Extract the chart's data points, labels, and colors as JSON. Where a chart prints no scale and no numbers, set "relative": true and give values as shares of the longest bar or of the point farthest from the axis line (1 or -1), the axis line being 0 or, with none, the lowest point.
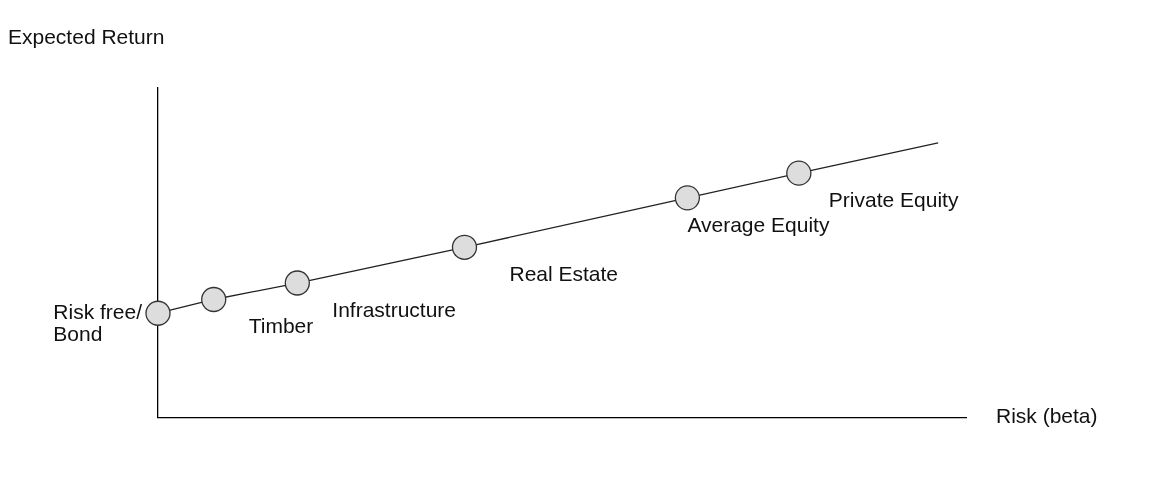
{
  "chart_data": {
    "type": "line",
    "xlabel": "Risk (beta)",
    "ylabel": "Expected Return",
    "relative": true,
    "legend": false,
    "grid": false,
    "marker": "circle",
    "categories": [
      null,
      null,
      null,
      null,
      null,
      null,
      null,
      null,
      null,
      null,
      null,
      null,
      null,
      null,
      null,
      null,
      null,
      null,
      null,
      null,
      null,
      null,
      null,
      null,
      null,
      null,
      null,
      null,
      null,
      null
    ],
    "series": [
      {
        "color": "#222222",
        "values": [
          0.38,
          null,
          0.43,
          null,
          null,
          0.49,
          null,
          null,
          null,
          null,
          null,
          0.62,
          null,
          null,
          null,
          null,
          null,
          null,
          null,
          0.8,
          null,
          null,
          null,
          0.89,
          null,
          null,
          null,
          null,
          1,
          null
        ]
      }
    ],
    "annotations": [
      "Risk free/\nBond",
      "Timber",
      "Infrastructure",
      "Real Estate",
      "Average Equity",
      "Private Equity"
    ]
  }
}
